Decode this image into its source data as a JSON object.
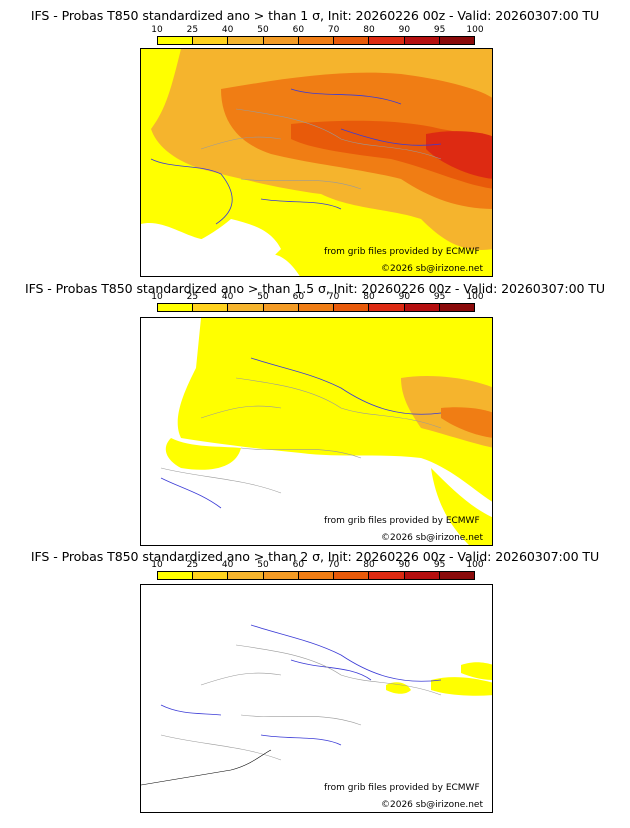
{
  "panels": [
    {
      "title": "IFS - Probas T850  standardized ano > than 1 σ, Init: 20260226 00z - Valid: 20260307:00 TU",
      "source": "from grib files provided by ECMWF",
      "copyright": "©2026 sb@irizone.net"
    },
    {
      "title": "IFS - Probas T850  standardized ano > than 1.5 σ, Init: 20260226 00z - Valid: 20260307:00 TU",
      "source": "from grib files provided by ECMWF",
      "copyright": "©2026 sb@irizone.net"
    },
    {
      "title": "IFS - Probas T850  standardized ano > than 2 σ, Init: 20260226 00z - Valid: 20260307:00 TU",
      "source": "from grib files provided by ECMWF",
      "copyright": "©2026 sb@irizone.net"
    }
  ],
  "colorbar": {
    "ticks": [
      "10",
      "25",
      "40",
      "50",
      "60",
      "70",
      "80",
      "90",
      "95",
      "100"
    ],
    "colors": [
      "#ffff00",
      "#ffd21e",
      "#f5b42d",
      "#f39b25",
      "#f07d14",
      "#e85a0a",
      "#dd2a12",
      "#b50f0f",
      "#8a0a0a"
    ]
  }
}
